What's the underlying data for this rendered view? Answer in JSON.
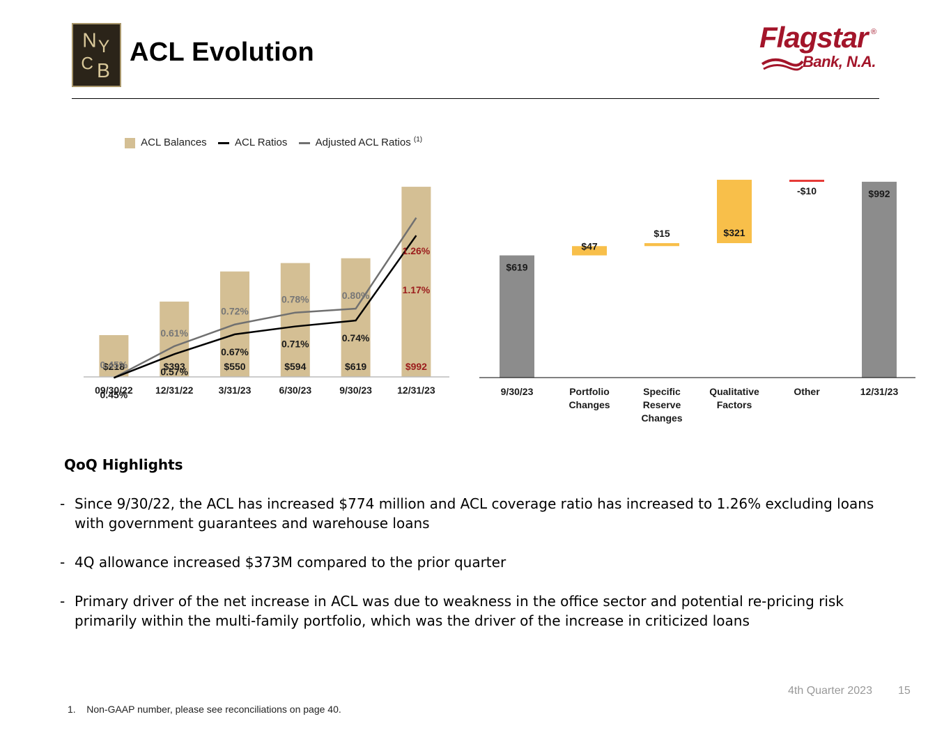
{
  "header": {
    "title": "ACL Evolution",
    "logo_text": "NYCB",
    "brand_name": "Flagstar",
    "brand_registered": "®",
    "brand_subtitle": "Bank, N.A."
  },
  "colors": {
    "bar_tan": "#d4bf94",
    "acl_ratio_line": "#000000",
    "adjusted_ratio_line": "#707070",
    "highlight_red": "#9b1c1c",
    "waterfall_gray": "#8c8c8c",
    "waterfall_increase": "#f8bf4a",
    "waterfall_decrease": "#e53935",
    "brand_red": "#a3152a"
  },
  "chart_data": [
    {
      "type": "bar",
      "title": "",
      "categories": [
        "09/30/22",
        "12/31/22",
        "3/31/23",
        "6/30/23",
        "9/30/23",
        "12/31/23"
      ],
      "series": [
        {
          "name": "ACL Balances",
          "kind": "bar",
          "values": [
            218,
            393,
            550,
            594,
            619,
            992
          ],
          "labels": [
            "$218",
            "$393",
            "$550",
            "$594",
            "$619",
            "$992"
          ]
        },
        {
          "name": "ACL Ratios",
          "kind": "line",
          "values": [
            0.45,
            0.57,
            0.67,
            0.71,
            0.74,
            1.17
          ],
          "labels": [
            "0.45%",
            "0.57%",
            "0.67%",
            "0.71%",
            "0.74%",
            "1.17%"
          ]
        },
        {
          "name": "Adjusted ACL Ratios",
          "kind": "line",
          "values": [
            0.45,
            0.61,
            0.72,
            0.78,
            0.8,
            1.26
          ],
          "labels": [
            "0.45%",
            "0.61%",
            "0.72%",
            "0.78%",
            "0.80%",
            "1.26%"
          ]
        }
      ],
      "legend": [
        "ACL Balances",
        "ACL Ratios",
        "Adjusted ACL Ratios"
      ],
      "legend_footnote": "(1)",
      "legend_position": "top",
      "bar_ylim": [
        0,
        1100
      ],
      "ratio_ylim": [
        0.0,
        2.0
      ],
      "grid": false,
      "xlabel": "",
      "ylabel": ""
    },
    {
      "type": "bar",
      "subtype": "waterfall",
      "title": "",
      "categories": [
        "9/30/23",
        "Portfolio Changes",
        "Specific Reserve Changes",
        "Qualitative Factors",
        "Other",
        "12/31/23"
      ],
      "category_lines": [
        [
          "9/30/23"
        ],
        [
          "Portfolio",
          "Changes"
        ],
        [
          "Specific",
          "Reserve",
          "Changes"
        ],
        [
          "Qualitative",
          "Factors"
        ],
        [
          "Other"
        ],
        [
          "12/31/23"
        ]
      ],
      "values": [
        619,
        47,
        15,
        321,
        -10,
        992
      ],
      "kinds": [
        "total",
        "delta",
        "delta",
        "delta",
        "delta",
        "total"
      ],
      "labels": [
        "$619",
        "$47",
        "$15",
        "$321",
        "-$10",
        "$992"
      ],
      "ylim": [
        0,
        1080
      ],
      "grid": false,
      "xlabel": "",
      "ylabel": ""
    }
  ],
  "highlights": {
    "title": "QoQ Highlights",
    "bullets": [
      {
        "dash": "-",
        "text": "Since 9/30/22, the ACL has increased $774 million and ACL coverage ratio has increased to 1.26% excluding loans with government guarantees and warehouse loans"
      },
      {
        "dash": "-",
        "text": "4Q allowance increased $373M compared to the prior quarter"
      },
      {
        "dash": "-",
        "text": "Primary driver of the net increase in ACL was due to weakness in the office sector and potential re-pricing risk primarily within the multi-family portfolio, which was the driver of the increase in criticized loans"
      }
    ]
  },
  "footer": {
    "period": "4th Quarter 2023",
    "page_number": "15",
    "footnote": "1.    Non-GAAP number, please see reconciliations on page 40."
  }
}
